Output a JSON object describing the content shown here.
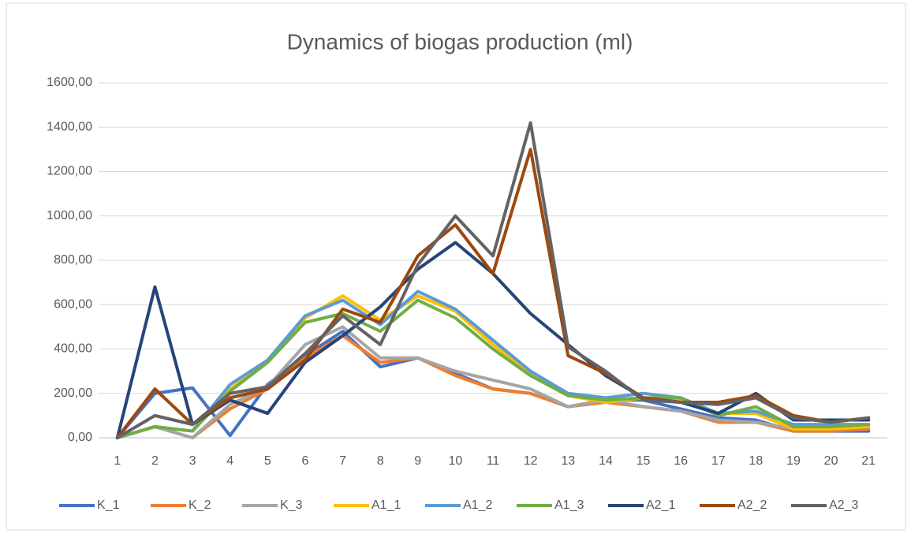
{
  "chart_data": {
    "type": "line",
    "title": "Dynamics of biogas production (ml)",
    "categories": [
      "1",
      "2",
      "3",
      "4",
      "5",
      "6",
      "7",
      "8",
      "9",
      "10",
      "11",
      "12",
      "13",
      "14",
      "15",
      "16",
      "17",
      "18",
      "19",
      "20",
      "21"
    ],
    "ylim": [
      0,
      1600
    ],
    "yticks": [
      {
        "value": 0,
        "label": "0,00"
      },
      {
        "value": 200,
        "label": "200,00"
      },
      {
        "value": 400,
        "label": "400,00"
      },
      {
        "value": 600,
        "label": "600,00"
      },
      {
        "value": 800,
        "label": "800,00"
      },
      {
        "value": 1000,
        "label": "1000,00"
      },
      {
        "value": 1200,
        "label": "1200,00"
      },
      {
        "value": 1400,
        "label": "1400,00"
      },
      {
        "value": 1600,
        "label": "1600,00"
      }
    ],
    "grid": true,
    "legend": "bottom",
    "series": [
      {
        "name": "K_1",
        "color": "#4472c4",
        "values": [
          0,
          200,
          225,
          10,
          240,
          370,
          480,
          320,
          360,
          290,
          220,
          200,
          140,
          170,
          170,
          130,
          90,
          80,
          30,
          30,
          30
        ]
      },
      {
        "name": "K_2",
        "color": "#ed7d31",
        "values": [
          0,
          50,
          0,
          130,
          220,
          360,
          460,
          340,
          360,
          280,
          220,
          200,
          140,
          160,
          140,
          120,
          70,
          70,
          30,
          30,
          40
        ]
      },
      {
        "name": "K_3",
        "color": "#a5a5a5",
        "values": [
          0,
          50,
          0,
          150,
          230,
          420,
          500,
          360,
          360,
          300,
          260,
          220,
          140,
          170,
          140,
          120,
          80,
          70,
          40,
          40,
          50
        ]
      },
      {
        "name": "A1_1",
        "color": "#ffc000",
        "values": [
          0,
          50,
          30,
          220,
          340,
          540,
          640,
          530,
          640,
          570,
          420,
          290,
          190,
          160,
          180,
          170,
          110,
          110,
          40,
          40,
          50
        ]
      },
      {
        "name": "A1_2",
        "color": "#5b9bd5",
        "values": [
          0,
          50,
          30,
          240,
          350,
          550,
          620,
          510,
          660,
          580,
          440,
          300,
          200,
          180,
          200,
          180,
          110,
          120,
          60,
          60,
          60
        ]
      },
      {
        "name": "A1_3",
        "color": "#70ad47",
        "values": [
          0,
          50,
          30,
          210,
          340,
          520,
          560,
          480,
          620,
          540,
          400,
          280,
          190,
          170,
          180,
          180,
          100,
          140,
          50,
          50,
          60
        ]
      },
      {
        "name": "A2_1",
        "color": "#264478",
        "values": [
          0,
          680,
          60,
          170,
          110,
          340,
          460,
          590,
          760,
          880,
          740,
          560,
          420,
          280,
          180,
          160,
          110,
          200,
          80,
          80,
          80
        ]
      },
      {
        "name": "A2_2",
        "color": "#9e480e",
        "values": [
          0,
          220,
          60,
          180,
          220,
          350,
          580,
          520,
          820,
          960,
          740,
          1300,
          370,
          290,
          180,
          160,
          160,
          190,
          100,
          70,
          90
        ]
      },
      {
        "name": "A2_3",
        "color": "#636363",
        "values": [
          0,
          100,
          60,
          200,
          230,
          380,
          550,
          420,
          780,
          1000,
          820,
          1420,
          410,
          300,
          170,
          160,
          150,
          180,
          90,
          70,
          90
        ]
      }
    ]
  }
}
